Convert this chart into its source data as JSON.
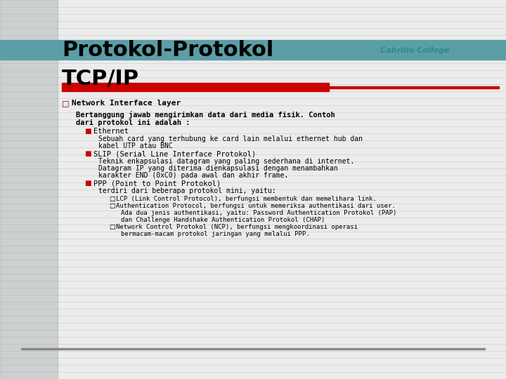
{
  "bg_color": "#ececec",
  "header_bar_color": "#5b9ea6",
  "red_bar_color": "#cc0000",
  "title_line1": "Protokol-Protokol",
  "title_line2": "TCP/IP",
  "cabrillo_text": "Cabrillo College",
  "cabrillo_color": "#2e8b8b",
  "title_color": "#000000",
  "left_bar_color": "#a0a8a8",
  "line_color": "#c8c8c8",
  "bottom_line_color": "#888888"
}
